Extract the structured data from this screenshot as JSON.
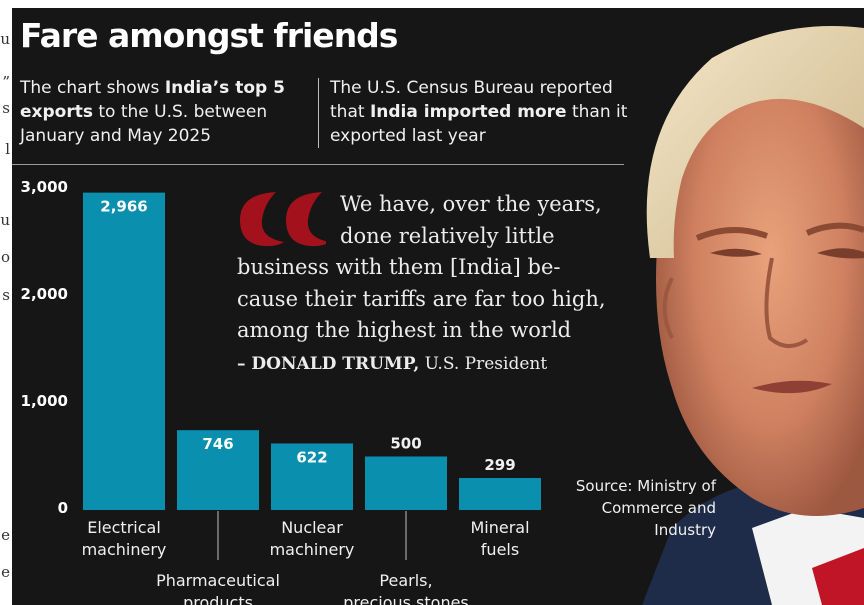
{
  "edge_text": [
    "u",
    "”",
    "s",
    "l",
    "u",
    "o",
    "s",
    "e",
    "e"
  ],
  "title": "Fare amongst friends",
  "intro_left": {
    "p1": "The chart shows ",
    "b1": "India’s top 5 exports",
    "p2": " to the U.S. between January and May 2025"
  },
  "intro_right": {
    "p1": "The U.S. Census Bureau reported that ",
    "b1": "India imported more",
    "p2": " than it exported last year"
  },
  "quote": {
    "lines": [
      "We have, over the years,",
      "done relatively little",
      "business with them [India] be-",
      "cause their tariffs are far too high,",
      "among the highest in the world"
    ],
    "name": "– DONALD TRUMP,",
    "role": " U.S. President"
  },
  "source": "Source: Ministry of Commerce and Industry",
  "colors": {
    "bar": "#0b8fae",
    "bar_label_inside": "#ffffff",
    "background": "#161616",
    "quote_mark": "#a3121c"
  },
  "chart_data": {
    "type": "bar",
    "categories": [
      "Electrical machinery",
      "Pharmaceutical products",
      "Nuclear machinery",
      "Pearls, precious stones",
      "Mineral fuels"
    ],
    "values": [
      2966,
      746,
      622,
      500,
      299
    ],
    "value_labels": [
      "2,966",
      "746",
      "622",
      "500",
      "299"
    ],
    "yticks": [
      0,
      1000,
      2000,
      3000
    ],
    "ytick_labels": [
      "0",
      "1,000",
      "2,000",
      "3,000"
    ],
    "ylim": [
      0,
      3000
    ],
    "title": "",
    "xlabel": "",
    "ylabel": "",
    "grid": false
  }
}
